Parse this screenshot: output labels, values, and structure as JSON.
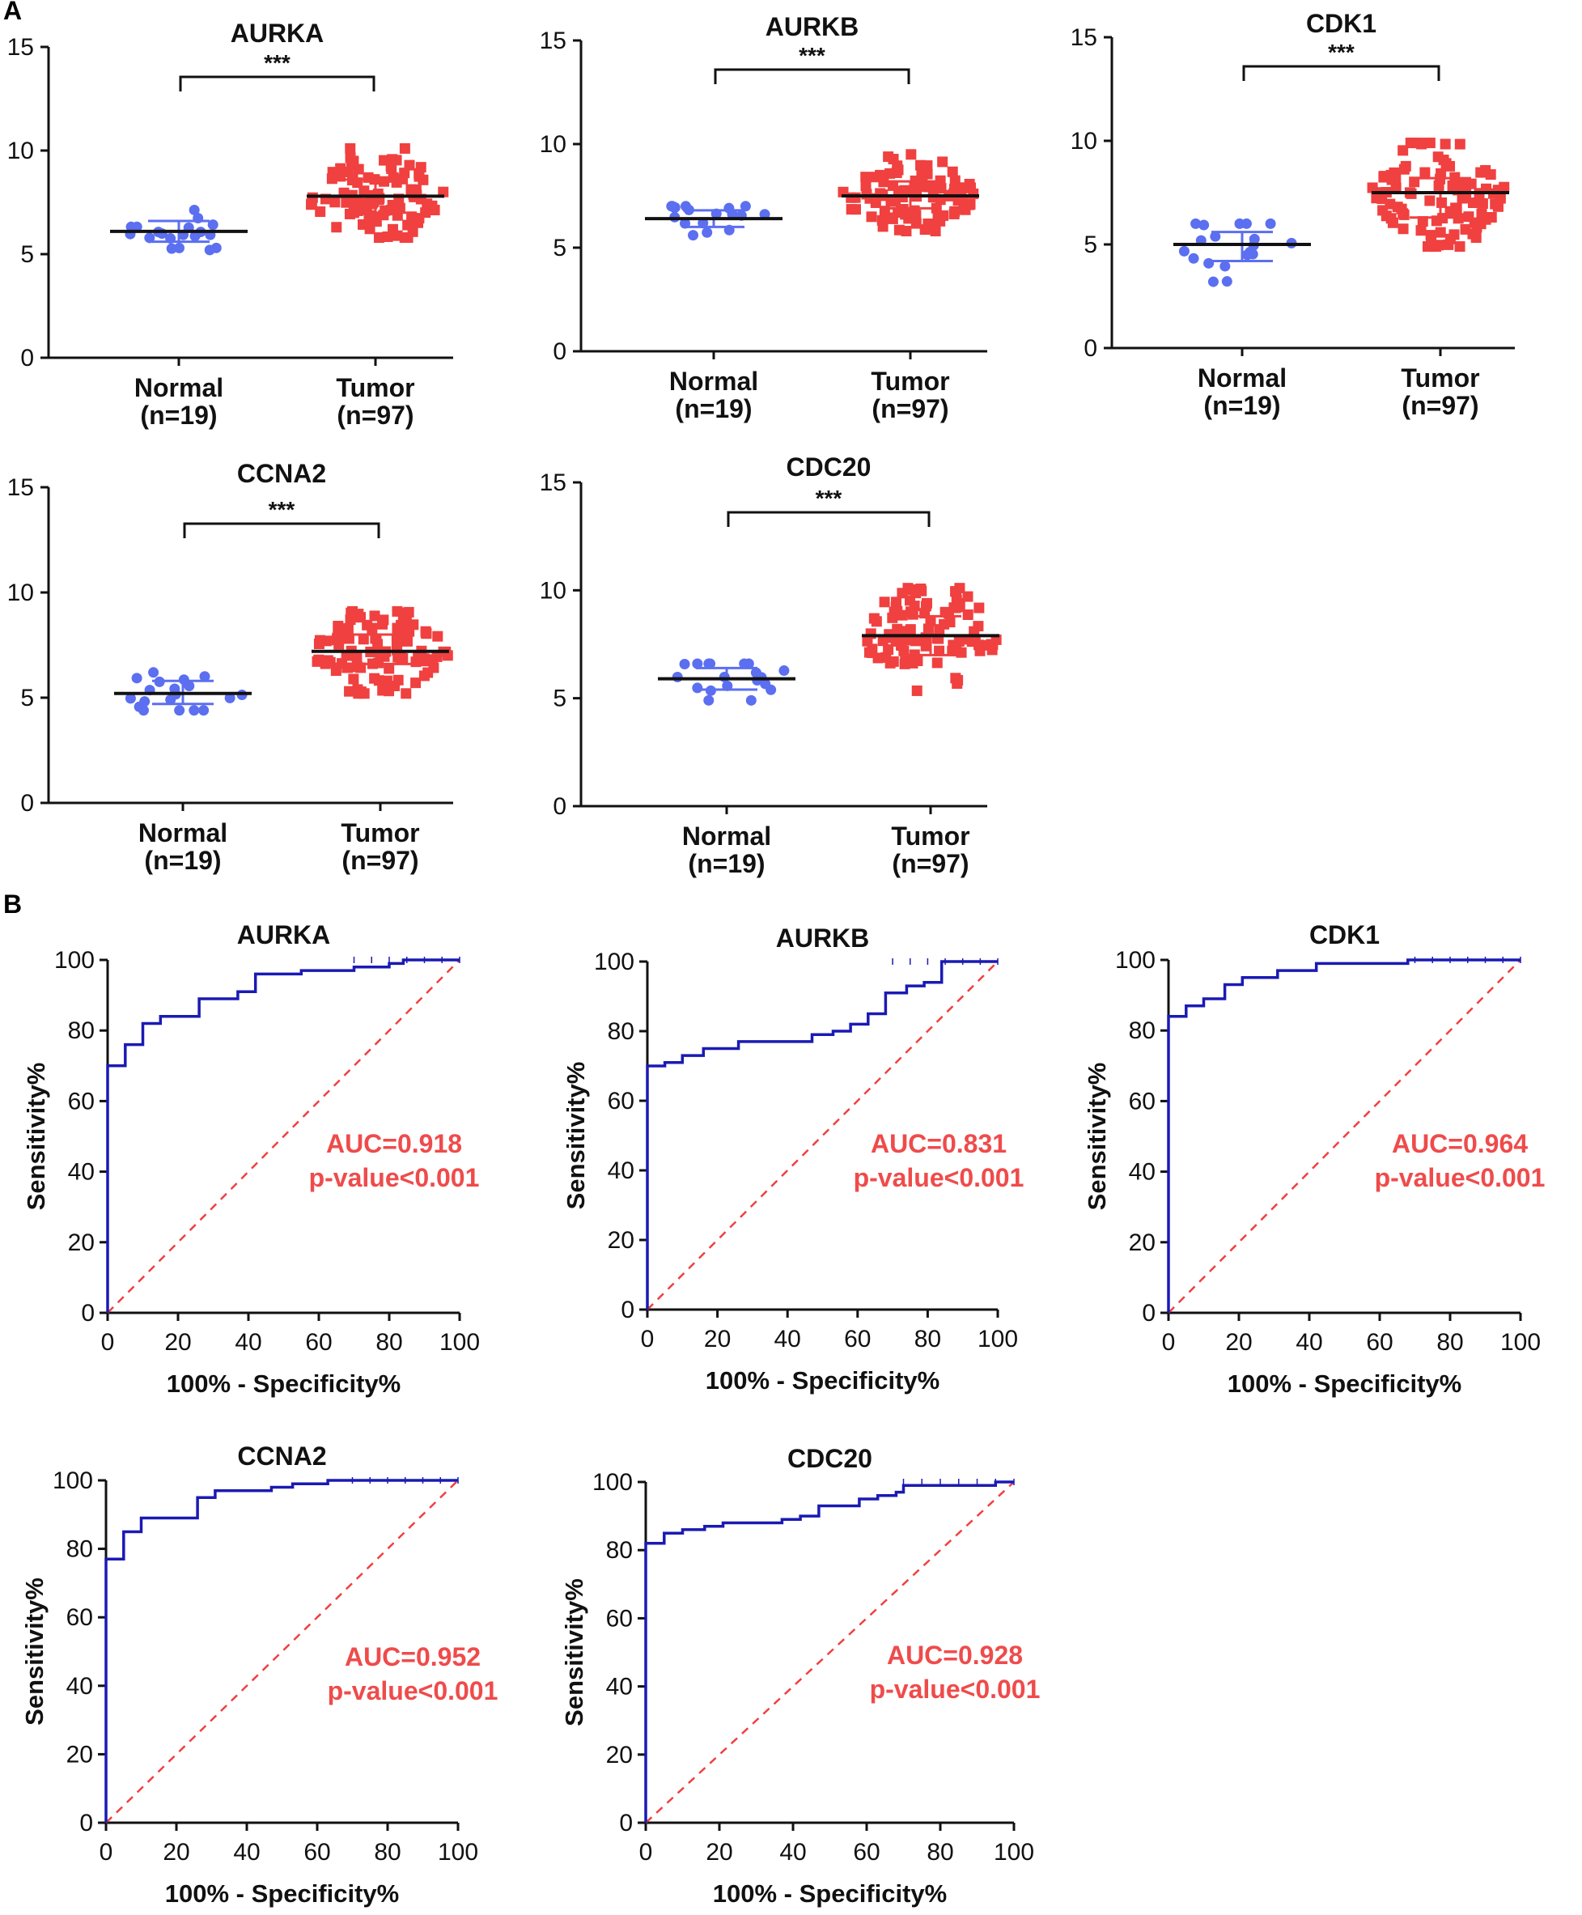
{
  "figure": {
    "panel_labels": [
      "A",
      "B"
    ]
  },
  "colors": {
    "normal": "#5b6ff0",
    "tumor": "#f04040",
    "roc_line": "#1a1ab4",
    "reference": "#f04040",
    "auc_text": "#ef4b4b"
  },
  "chart_data": [
    {
      "type": "scatter",
      "subtype": "dot-plot",
      "panel": "A",
      "title": "AURKA",
      "significance": "***",
      "ylim": [
        0,
        15
      ],
      "yticks": [
        0,
        5,
        10,
        15
      ],
      "groups": [
        {
          "label": "Normal",
          "n_label": "(n=19)",
          "n": 19,
          "median": 6.1,
          "q1": 5.6,
          "q3": 6.6,
          "min": 5.2,
          "max": 7.3
        },
        {
          "label": "Tumor",
          "n_label": "(n=97)",
          "n": 97,
          "median": 7.8,
          "q1": 7.0,
          "q3": 8.6,
          "min": 5.8,
          "max": 10.1
        }
      ]
    },
    {
      "type": "scatter",
      "subtype": "dot-plot",
      "panel": "A",
      "title": "AURKB",
      "significance": "***",
      "ylim": [
        0,
        15
      ],
      "yticks": [
        0,
        5,
        10,
        15
      ],
      "groups": [
        {
          "label": "Normal",
          "n_label": "(n=19)",
          "n": 19,
          "median": 6.4,
          "q1": 6.0,
          "q3": 6.8,
          "min": 5.6,
          "max": 7.0
        },
        {
          "label": "Tumor",
          "n_label": "(n=97)",
          "n": 97,
          "median": 7.5,
          "q1": 6.9,
          "q3": 8.2,
          "min": 5.8,
          "max": 9.5
        }
      ]
    },
    {
      "type": "scatter",
      "subtype": "dot-plot",
      "panel": "A",
      "title": "CDK1",
      "significance": "***",
      "ylim": [
        0,
        15
      ],
      "yticks": [
        0,
        5,
        10,
        15
      ],
      "groups": [
        {
          "label": "Normal",
          "n_label": "(n=19)",
          "n": 19,
          "median": 5.0,
          "q1": 4.2,
          "q3": 5.6,
          "min": 3.2,
          "max": 6.0
        },
        {
          "label": "Tumor",
          "n_label": "(n=97)",
          "n": 97,
          "median": 7.5,
          "q1": 6.3,
          "q3": 8.2,
          "min": 4.9,
          "max": 9.9
        }
      ]
    },
    {
      "type": "scatter",
      "subtype": "dot-plot",
      "panel": "A",
      "title": "CCNA2",
      "significance": "***",
      "ylim": [
        0,
        15
      ],
      "yticks": [
        0,
        5,
        10,
        15
      ],
      "groups": [
        {
          "label": "Normal",
          "n_label": "(n=19)",
          "n": 19,
          "median": 5.2,
          "q1": 4.7,
          "q3": 5.8,
          "min": 4.4,
          "max": 6.2
        },
        {
          "label": "Tumor",
          "n_label": "(n=97)",
          "n": 97,
          "median": 7.2,
          "q1": 6.6,
          "q3": 8.0,
          "min": 5.2,
          "max": 9.1
        }
      ]
    },
    {
      "type": "scatter",
      "subtype": "dot-plot",
      "panel": "A",
      "title": "CDC20",
      "significance": "***",
      "ylim": [
        0,
        15
      ],
      "yticks": [
        0,
        5,
        10,
        15
      ],
      "groups": [
        {
          "label": "Normal",
          "n_label": "(n=19)",
          "n": 19,
          "median": 5.9,
          "q1": 5.4,
          "q3": 6.4,
          "min": 4.9,
          "max": 6.6
        },
        {
          "label": "Tumor",
          "n_label": "(n=97)",
          "n": 97,
          "median": 7.9,
          "q1": 7.0,
          "q3": 8.8,
          "min": 5.1,
          "max": 10.1
        }
      ]
    },
    {
      "type": "line",
      "subtype": "roc",
      "panel": "B",
      "title": "AURKA",
      "xlabel": "100% - Specificity%",
      "ylabel": "Sensitivity%",
      "xlim": [
        0,
        100
      ],
      "ylim": [
        0,
        100
      ],
      "xticks": [
        0,
        20,
        40,
        60,
        80,
        100
      ],
      "yticks": [
        0,
        20,
        40,
        60,
        80,
        100
      ],
      "auc_label": "AUC=0.918",
      "p_label": "p-value<0.001",
      "roc_points": [
        [
          0,
          0
        ],
        [
          0,
          70
        ],
        [
          5,
          70
        ],
        [
          5,
          76
        ],
        [
          10,
          76
        ],
        [
          10,
          82
        ],
        [
          15,
          82
        ],
        [
          15,
          84
        ],
        [
          26,
          84
        ],
        [
          26,
          89
        ],
        [
          37,
          89
        ],
        [
          37,
          91
        ],
        [
          42,
          91
        ],
        [
          42,
          96
        ],
        [
          55,
          96
        ],
        [
          55,
          97
        ],
        [
          70,
          97
        ],
        [
          70,
          98
        ],
        [
          80,
          98
        ],
        [
          80,
          99
        ],
        [
          84,
          99
        ],
        [
          84,
          100
        ],
        [
          100,
          100
        ]
      ],
      "reference_line": [
        [
          0,
          0
        ],
        [
          100,
          100
        ]
      ]
    },
    {
      "type": "line",
      "subtype": "roc",
      "panel": "B",
      "title": "AURKB",
      "xlabel": "100% - Specificity%",
      "ylabel": "Sensitivity%",
      "xlim": [
        0,
        100
      ],
      "ylim": [
        0,
        100
      ],
      "xticks": [
        0,
        20,
        40,
        60,
        80,
        100
      ],
      "yticks": [
        0,
        20,
        40,
        60,
        80,
        100
      ],
      "auc_label": "AUC=0.831",
      "p_label": "p-value<0.001",
      "roc_points": [
        [
          0,
          0
        ],
        [
          0,
          70
        ],
        [
          5,
          70
        ],
        [
          5,
          71
        ],
        [
          10,
          71
        ],
        [
          10,
          73
        ],
        [
          16,
          73
        ],
        [
          16,
          75
        ],
        [
          26,
          75
        ],
        [
          26,
          77
        ],
        [
          47,
          77
        ],
        [
          47,
          79
        ],
        [
          53,
          79
        ],
        [
          53,
          80
        ],
        [
          58,
          80
        ],
        [
          58,
          82
        ],
        [
          63,
          82
        ],
        [
          63,
          85
        ],
        [
          68,
          85
        ],
        [
          68,
          91
        ],
        [
          74,
          91
        ],
        [
          74,
          93
        ],
        [
          79,
          93
        ],
        [
          79,
          94
        ],
        [
          84,
          94
        ],
        [
          84,
          100
        ],
        [
          100,
          100
        ]
      ],
      "reference_line": [
        [
          0,
          0
        ],
        [
          100,
          100
        ]
      ]
    },
    {
      "type": "line",
      "subtype": "roc",
      "panel": "B",
      "title": "CDK1",
      "xlabel": "100% - Specificity%",
      "ylabel": "Sensitivity%",
      "xlim": [
        0,
        100
      ],
      "ylim": [
        0,
        100
      ],
      "xticks": [
        0,
        20,
        40,
        60,
        80,
        100
      ],
      "yticks": [
        0,
        20,
        40,
        60,
        80,
        100
      ],
      "auc_label": "AUC=0.964",
      "p_label": "p-value<0.001",
      "roc_points": [
        [
          0,
          0
        ],
        [
          0,
          84
        ],
        [
          5,
          84
        ],
        [
          5,
          87
        ],
        [
          10,
          87
        ],
        [
          10,
          89
        ],
        [
          16,
          89
        ],
        [
          16,
          93
        ],
        [
          21,
          93
        ],
        [
          21,
          95
        ],
        [
          31,
          95
        ],
        [
          31,
          97
        ],
        [
          42,
          97
        ],
        [
          42,
          99
        ],
        [
          68,
          99
        ],
        [
          68,
          100
        ],
        [
          100,
          100
        ]
      ],
      "reference_line": [
        [
          0,
          0
        ],
        [
          100,
          100
        ]
      ]
    },
    {
      "type": "line",
      "subtype": "roc",
      "panel": "B",
      "title": "CCNA2",
      "xlabel": "100% - Specificity%",
      "ylabel": "Sensitivity%",
      "xlim": [
        0,
        100
      ],
      "ylim": [
        0,
        100
      ],
      "xticks": [
        0,
        20,
        40,
        60,
        80,
        100
      ],
      "yticks": [
        0,
        20,
        40,
        60,
        80,
        100
      ],
      "auc_label": "AUC=0.952",
      "p_label": "p-value<0.001",
      "roc_points": [
        [
          0,
          0
        ],
        [
          0,
          77
        ],
        [
          5,
          77
        ],
        [
          5,
          85
        ],
        [
          10,
          85
        ],
        [
          10,
          89
        ],
        [
          26,
          89
        ],
        [
          26,
          95
        ],
        [
          31,
          95
        ],
        [
          31,
          97
        ],
        [
          47,
          97
        ],
        [
          47,
          98
        ],
        [
          53,
          98
        ],
        [
          53,
          99
        ],
        [
          63,
          99
        ],
        [
          63,
          100
        ],
        [
          100,
          100
        ]
      ],
      "reference_line": [
        [
          0,
          0
        ],
        [
          100,
          100
        ]
      ]
    },
    {
      "type": "line",
      "subtype": "roc",
      "panel": "B",
      "title": "CDC20",
      "xlabel": "100% - Specificity%",
      "ylabel": "Sensitivity%",
      "xlim": [
        0,
        100
      ],
      "ylim": [
        0,
        100
      ],
      "xticks": [
        0,
        20,
        40,
        60,
        80,
        100
      ],
      "yticks": [
        0,
        20,
        40,
        60,
        80,
        100
      ],
      "auc_label": "AUC=0.928",
      "p_label": "p-value<0.001",
      "roc_points": [
        [
          0,
          0
        ],
        [
          0,
          82
        ],
        [
          5,
          82
        ],
        [
          5,
          85
        ],
        [
          10,
          85
        ],
        [
          10,
          86
        ],
        [
          16,
          86
        ],
        [
          16,
          87
        ],
        [
          21,
          87
        ],
        [
          21,
          88
        ],
        [
          37,
          88
        ],
        [
          37,
          89
        ],
        [
          42,
          89
        ],
        [
          42,
          90
        ],
        [
          47,
          90
        ],
        [
          47,
          93
        ],
        [
          58,
          93
        ],
        [
          58,
          95
        ],
        [
          63,
          95
        ],
        [
          63,
          96
        ],
        [
          68,
          96
        ],
        [
          68,
          97
        ],
        [
          70,
          97
        ],
        [
          70,
          99
        ],
        [
          95,
          99
        ],
        [
          95,
          100
        ],
        [
          100,
          100
        ]
      ],
      "reference_line": [
        [
          0,
          0
        ],
        [
          100,
          100
        ]
      ]
    }
  ]
}
